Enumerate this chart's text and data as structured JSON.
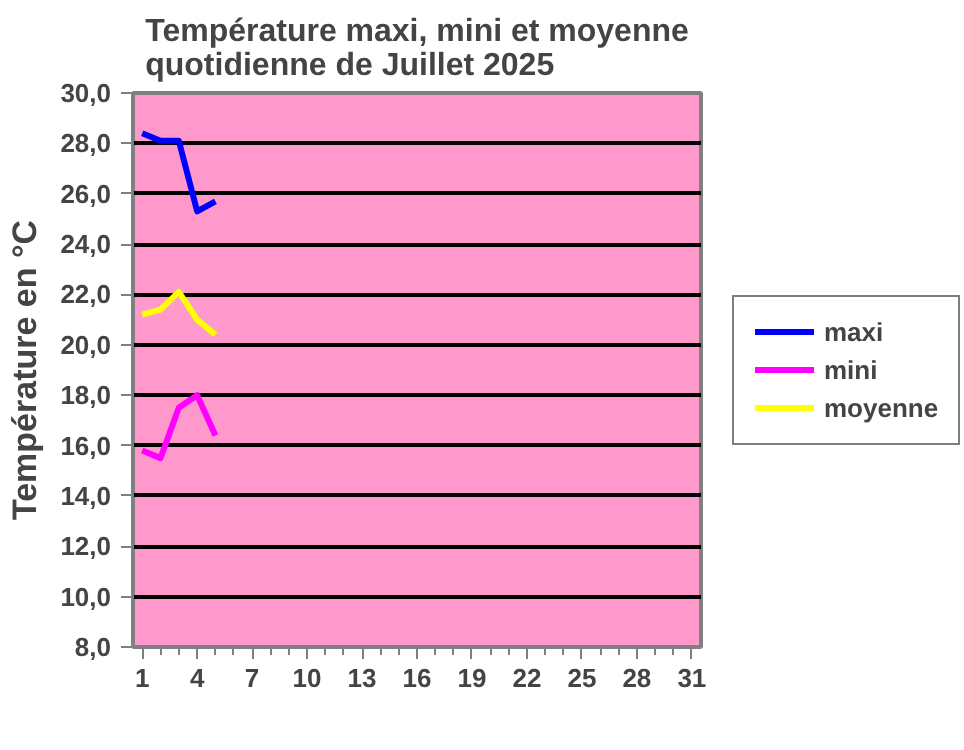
{
  "chart_data": {
    "type": "line",
    "title": "Température maxi, mini et moyenne quotidienne de Juillet 2025",
    "ylabel": "Température en °C",
    "x": [
      1,
      2,
      3,
      4,
      5
    ],
    "series": [
      {
        "name": "maxi",
        "color": "#0000ff",
        "values": [
          28.4,
          28.1,
          28.1,
          25.3,
          25.7
        ]
      },
      {
        "name": "mini",
        "color": "#ff00ff",
        "values": [
          15.8,
          15.5,
          17.5,
          18.0,
          16.4
        ]
      },
      {
        "name": "moyenne",
        "color": "#ffff00",
        "values": [
          21.2,
          21.4,
          22.1,
          21.0,
          20.4
        ]
      }
    ],
    "xlim": [
      0.5,
      31.5
    ],
    "xticks": [
      1,
      4,
      7,
      10,
      13,
      16,
      19,
      22,
      25,
      28,
      31
    ],
    "ylim": [
      8,
      30
    ],
    "yticks": [
      {
        "value": 8,
        "label": "8,0"
      },
      {
        "value": 10,
        "label": "10,0"
      },
      {
        "value": 12,
        "label": "12,0"
      },
      {
        "value": 14,
        "label": "14,0"
      },
      {
        "value": 16,
        "label": "16,0"
      },
      {
        "value": 18,
        "label": "18,0"
      },
      {
        "value": 20,
        "label": "20,0"
      },
      {
        "value": 22,
        "label": "22,0"
      },
      {
        "value": 24,
        "label": "24,0"
      },
      {
        "value": 26,
        "label": "26,0"
      },
      {
        "value": 28,
        "label": "28,0"
      },
      {
        "value": 30,
        "label": "30,0"
      }
    ],
    "grid": "y",
    "legend": "right",
    "marker": "none",
    "line_style": "solid"
  }
}
